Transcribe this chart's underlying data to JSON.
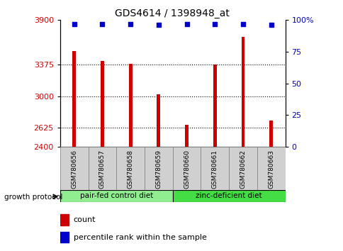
{
  "title": "GDS4614 / 1398948_at",
  "samples": [
    "GSM780656",
    "GSM780657",
    "GSM780658",
    "GSM780659",
    "GSM780660",
    "GSM780661",
    "GSM780662",
    "GSM780663"
  ],
  "counts": [
    3530,
    3420,
    3385,
    3020,
    2660,
    3375,
    3700,
    2710
  ],
  "percentile_ranks": [
    97,
    97,
    97,
    96,
    97,
    97,
    97,
    96
  ],
  "ylim_left": [
    2400,
    3900
  ],
  "yticks_left": [
    2400,
    2625,
    3000,
    3375,
    3900
  ],
  "yticks_right": [
    0,
    25,
    50,
    75,
    100
  ],
  "ylim_right": [
    0,
    100
  ],
  "bar_color": "#cc0000",
  "dot_color": "#0000cc",
  "group1_label": "pair-fed control diet",
  "group2_label": "zinc-deficient diet",
  "group1_indices": [
    0,
    1,
    2,
    3
  ],
  "group2_indices": [
    4,
    5,
    6,
    7
  ],
  "group1_color": "#90ee90",
  "group2_color": "#44dd44",
  "protocol_label": "growth protocol",
  "legend_count_label": "count",
  "legend_pct_label": "percentile rank within the sample",
  "title_fontsize": 10,
  "axis_label_color_left": "#cc0000",
  "axis_label_color_right": "#0000cc",
  "background_color": "#ffffff",
  "sample_box_color": "#d0d0d0"
}
